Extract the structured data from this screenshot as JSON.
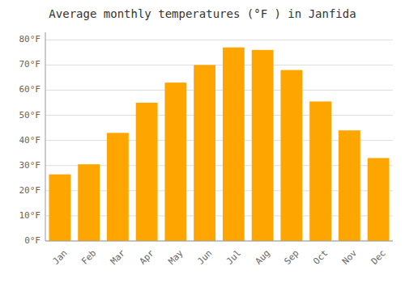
{
  "chart_data": {
    "type": "bar",
    "title": "Average monthly temperatures (°F ) in Janfida",
    "categories": [
      "Jan",
      "Feb",
      "Mar",
      "Apr",
      "May",
      "Jun",
      "Jul",
      "Aug",
      "Sep",
      "Oct",
      "Nov",
      "Dec"
    ],
    "values": [
      26.5,
      30.5,
      43.0,
      55.0,
      63.0,
      70.0,
      77.0,
      76.0,
      68.0,
      55.5,
      44.0,
      33.0
    ],
    "color": "#FFA500",
    "ylim": [
      0,
      83
    ],
    "yticks": [
      {
        "value": 0,
        "label": "0°F"
      },
      {
        "value": 10,
        "label": "10°F"
      },
      {
        "value": 20,
        "label": "20°F"
      },
      {
        "value": 30,
        "label": "30°F"
      },
      {
        "value": 40,
        "label": "40°F"
      },
      {
        "value": 50,
        "label": "50°F"
      },
      {
        "value": 60,
        "label": "60°F"
      },
      {
        "value": 70,
        "label": "70°F"
      },
      {
        "value": 80,
        "label": "80°F"
      }
    ],
    "grid": true
  }
}
